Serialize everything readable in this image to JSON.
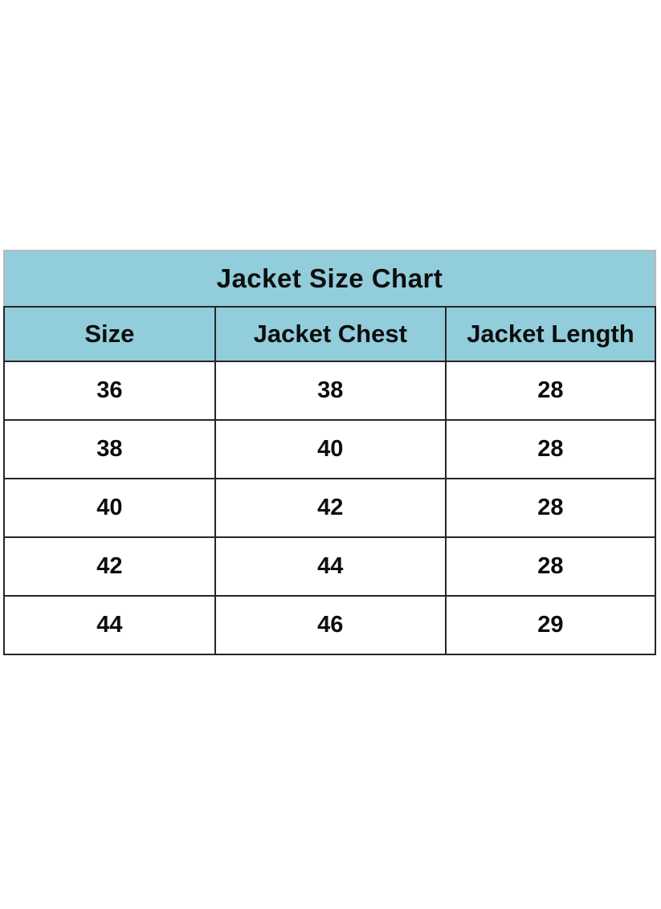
{
  "table": {
    "title": "Jacket Size Chart",
    "columns": [
      "Size",
      "Jacket Chest",
      "Jacket Length"
    ],
    "rows": [
      [
        "36",
        "38",
        "28"
      ],
      [
        "38",
        "40",
        "28"
      ],
      [
        "40",
        "42",
        "28"
      ],
      [
        "42",
        "44",
        "28"
      ],
      [
        "44",
        "46",
        "29"
      ]
    ]
  },
  "colors": {
    "header_bg": "#92CDDC",
    "border": "#262626",
    "text": "#0d0d0d",
    "page_bg": "#ffffff"
  }
}
